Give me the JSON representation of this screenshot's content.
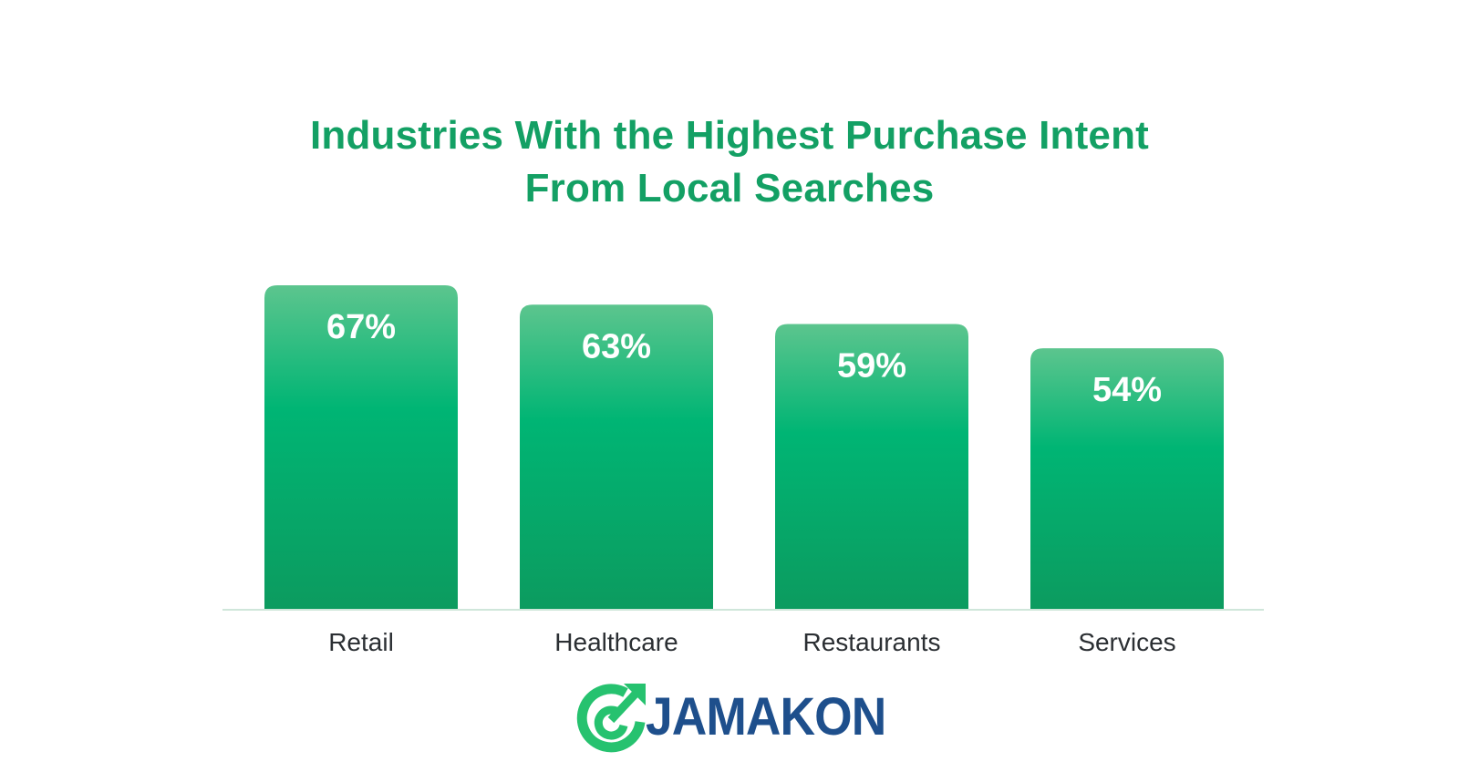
{
  "title_lines": [
    "Industries With the Highest Purchase Intent",
    "From Local Searches"
  ],
  "chart_data": {
    "type": "bar",
    "title": "Industries With the Highest Purchase Intent From Local Searches",
    "categories": [
      "Retail",
      "Healthcare",
      "Restaurants",
      "Services"
    ],
    "values": [
      67,
      63,
      59,
      54
    ],
    "value_labels": [
      "67%",
      "63%",
      "59%",
      "54%"
    ],
    "unit": "%",
    "ylim": [
      0,
      67
    ],
    "grid": false,
    "legend": "none",
    "colors": {
      "bar_top": "#5cc58e",
      "bar_bottom": "#0c9b5f",
      "bar_mid": "#00b574",
      "title": "#13a064",
      "baseline": "#cfe6da"
    }
  },
  "logo": {
    "text": "JAMAKON",
    "icon": "growth-arrow-icon",
    "colors": {
      "mark": "#26c26f",
      "text": "#1e4f8c"
    }
  }
}
